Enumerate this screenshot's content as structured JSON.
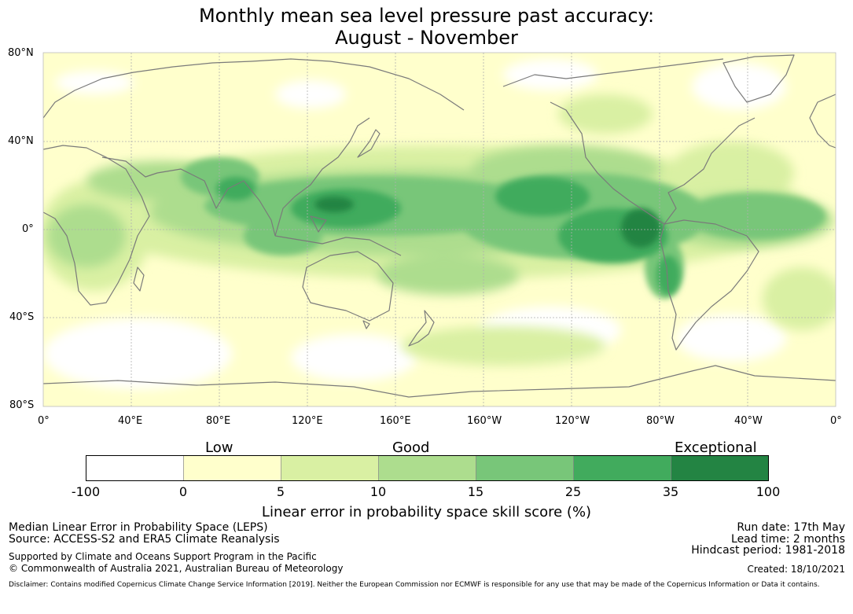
{
  "title": {
    "line1": "Monthly mean sea level pressure past accuracy:",
    "line2": "August - November"
  },
  "map": {
    "lat_labels": [
      "80°N",
      "40°N",
      "0°",
      "40°S",
      "80°S"
    ],
    "lon_labels": [
      "0°",
      "40°E",
      "80°E",
      "120°E",
      "160°E",
      "160°W",
      "120°W",
      "80°W",
      "40°W",
      "0°"
    ],
    "coast_color": "#7a7a7a",
    "grid_color": "#b0b0b0"
  },
  "colorbar": {
    "categories": [
      "Low",
      "Good",
      "Exceptional"
    ],
    "ticks": [
      "-100",
      "0",
      "5",
      "10",
      "15",
      "25",
      "35",
      "100"
    ],
    "colors": [
      "#ffffff",
      "#ffffcc",
      "#d9f0a3",
      "#addd8e",
      "#78c679",
      "#41ab5d",
      "#238443"
    ],
    "label": "Linear error in probability space skill score (%)"
  },
  "footer": {
    "left1": "Median Linear Error in Probability Space (LEPS)",
    "left2": "Source: ACCESS-S2 and ERA5 Climate Reanalysis",
    "left3": "Supported by Climate and Oceans Support Program in the Pacific",
    "left4": "© Commonwealth of Australia 2021, Australian Bureau of Meteorology",
    "right1": "Run date: 17th May",
    "right2": "Lead time: 2 months",
    "right3": "Hindcast period: 1981-2018",
    "right4": "Created: 18/10/2021",
    "disclaimer": "Disclaimer: Contains modified Copernicus Climate Change Service Information [2019]. Neither the European Commission nor ECMWF is responsible for any use that may be made of the Copernicus Information or Data it contains."
  }
}
